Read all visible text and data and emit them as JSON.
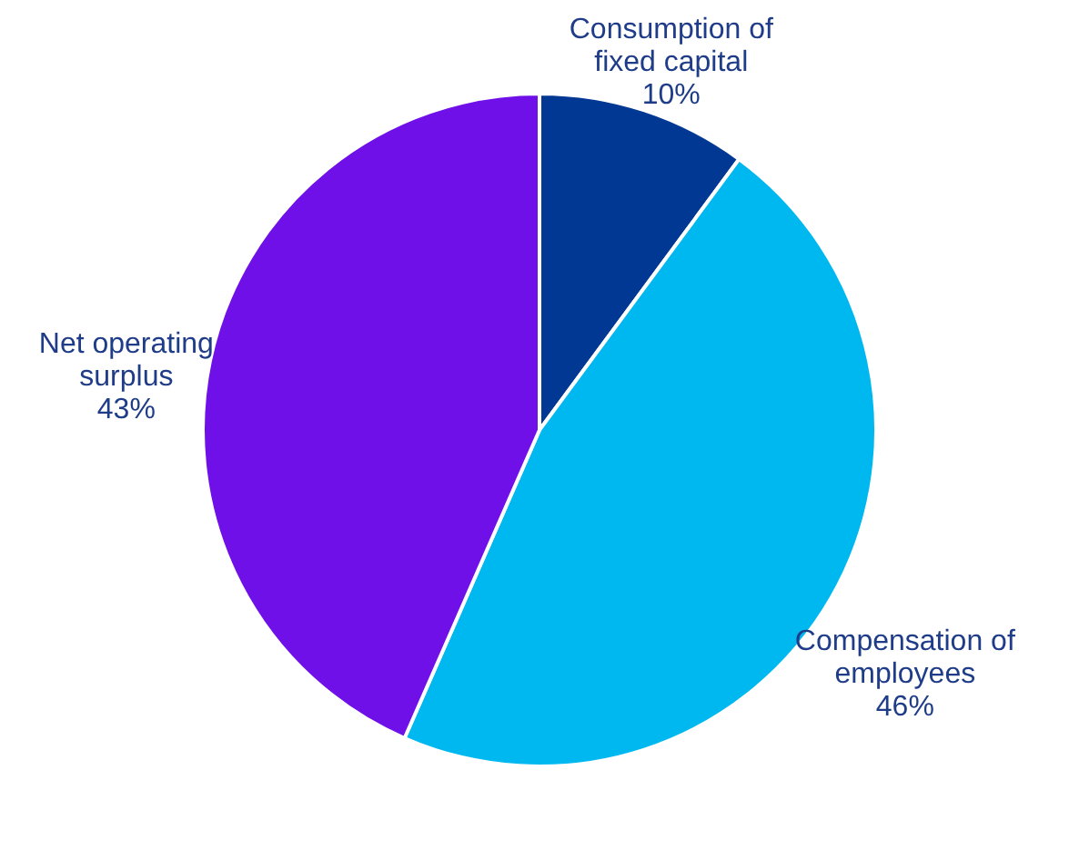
{
  "chart_data": {
    "type": "pie",
    "categories": [
      "Consumption of fixed capital",
      "Compensation of employees",
      "Net operating surplus"
    ],
    "values": [
      10,
      46,
      43
    ],
    "colors": [
      "#003893",
      "#00b8f0",
      "#7010e8"
    ],
    "value_labels": [
      "10%",
      "46%",
      "43%"
    ]
  }
}
